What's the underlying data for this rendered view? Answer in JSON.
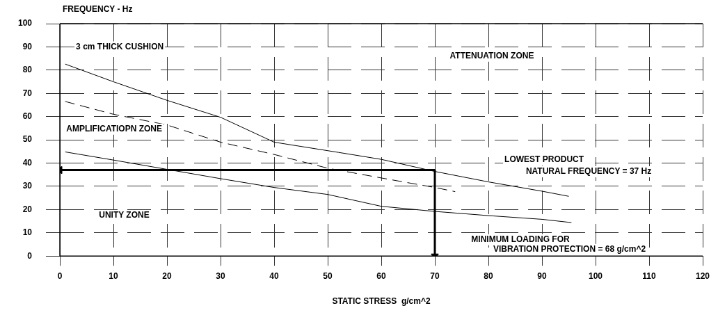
{
  "chart_data": {
    "type": "line",
    "ylabel": "FREQUENCY - Hz",
    "xlabel": "STATIC STRESS  g/cm^2",
    "xlim": [
      0,
      120
    ],
    "xticks": [
      0,
      10,
      20,
      30,
      40,
      50,
      60,
      70,
      80,
      90,
      100,
      110,
      120
    ],
    "ylim": [
      0,
      100
    ],
    "yticks": [
      0,
      10,
      20,
      30,
      40,
      50,
      60,
      70,
      80,
      90,
      100
    ],
    "grid": true,
    "legend": false,
    "marker": "none",
    "series": [
      {
        "color": "#000000",
        "x": [
          1,
          10,
          20,
          30,
          40,
          52,
          60,
          70,
          80,
          90,
          95
        ],
        "values": [
          82.6,
          75,
          67,
          59.7,
          49,
          44.6,
          41.6,
          36.4,
          31.9,
          27.9,
          25.7
        ]
      },
      {
        "color": "#000000",
        "line_style": "dashed",
        "x": [
          1,
          10,
          20,
          30,
          40,
          50,
          60,
          70,
          73.8
        ],
        "values": [
          66.5,
          61,
          56.4,
          49,
          43.7,
          37.8,
          33.6,
          29.5,
          27.7
        ]
      },
      {
        "color": "#000000",
        "x": [
          1,
          10,
          20,
          30,
          40,
          50,
          60,
          70,
          80,
          90,
          95.5
        ],
        "values": [
          44.8,
          41.3,
          37.3,
          33.3,
          29.5,
          26.5,
          21.4,
          19.2,
          17.4,
          15.8,
          14.4
        ]
      },
      {
        "color": "#000000",
        "marker": "triangle",
        "x": [
          0,
          70,
          70
        ],
        "values": [
          37,
          37,
          0
        ]
      }
    ],
    "annotations": [
      "3 cm THICK CUSHION",
      "ATTENUATION ZONE",
      "AMPLIFICATIOPN ZONE",
      "UNITY ZONE",
      "LOWEST PRODUCT",
      "NATURAL FREQUENCY = 37 Hz",
      "MINIMUM LOADING FOR",
      "VIBRATION PROTECTION = 68 g/cm^2"
    ]
  }
}
